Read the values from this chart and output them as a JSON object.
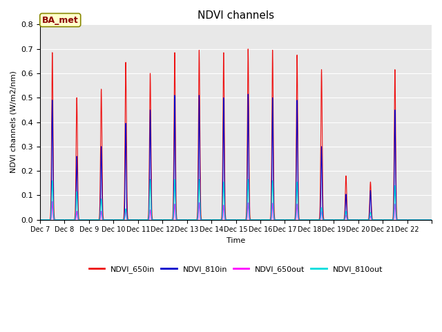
{
  "title": "NDVI channels",
  "ylabel": "NDVI channels (W/m2/nm)",
  "xlabel": "Time",
  "xtick_labels": [
    "Dec 7",
    "Dec 8",
    "Dec 9",
    "Dec 10",
    "Dec 11",
    "Dec 12",
    "Dec 13",
    "Dec 14",
    "Dec 15",
    "Dec 16",
    "Dec 17",
    "Dec 18",
    "Dec 19",
    "Dec 20",
    "Dec 21",
    "Dec 22"
  ],
  "ylim": [
    0.0,
    0.8
  ],
  "yticks": [
    0.0,
    0.1,
    0.2,
    0.3,
    0.4,
    0.5,
    0.6,
    0.7,
    0.8
  ],
  "color_650in": "#ee1111",
  "color_810in": "#0000cc",
  "color_650out": "#ff00ff",
  "color_810out": "#00dddd",
  "legend_label_650in": "NDVI_650in",
  "legend_label_810in": "NDVI_810in",
  "legend_label_650out": "NDVI_650out",
  "legend_label_810out": "NDVI_810out",
  "annotation_text": "BA_met",
  "bg_color": "#e8e8e8",
  "peak_650in": [
    0.685,
    0.5,
    0.535,
    0.645,
    0.6,
    0.685,
    0.695,
    0.685,
    0.7,
    0.695,
    0.675,
    0.615,
    0.18,
    0.155,
    0.615,
    0.0
  ],
  "peak_810in": [
    0.49,
    0.26,
    0.3,
    0.395,
    0.45,
    0.51,
    0.51,
    0.5,
    0.515,
    0.5,
    0.49,
    0.3,
    0.105,
    0.12,
    0.45,
    0.0
  ],
  "peak_650out": [
    0.075,
    0.035,
    0.035,
    0.04,
    0.04,
    0.065,
    0.07,
    0.06,
    0.07,
    0.068,
    0.065,
    0.035,
    0.02,
    0.015,
    0.065,
    0.0
  ],
  "peak_810out": [
    0.16,
    0.115,
    0.085,
    0.045,
    0.165,
    0.165,
    0.165,
    0.155,
    0.165,
    0.16,
    0.155,
    0.05,
    0.035,
    0.03,
    0.14,
    0.0
  ],
  "n_days": 16,
  "pts_per_day": 500
}
